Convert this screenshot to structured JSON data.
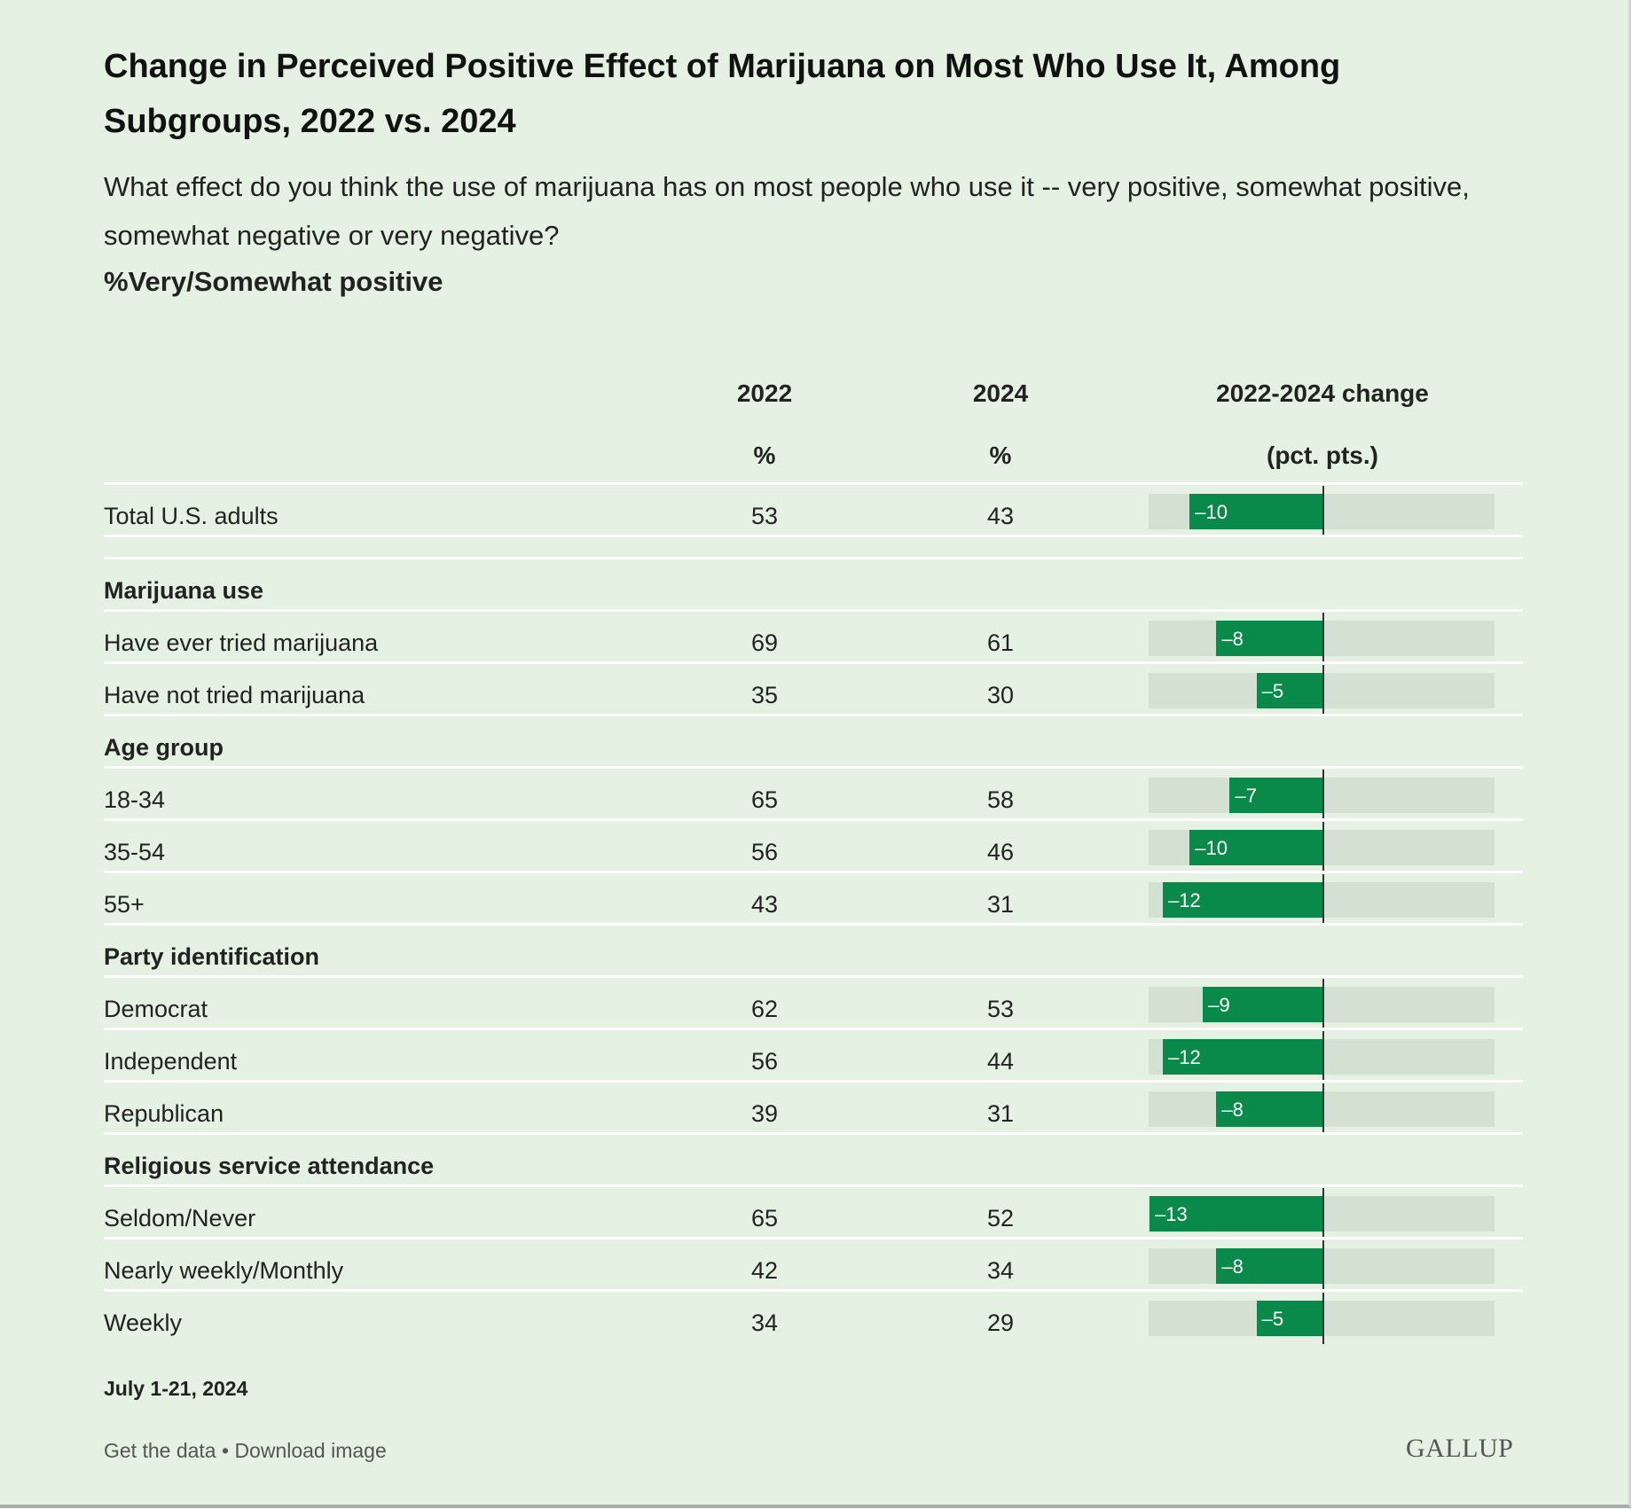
{
  "title": "Change in Perceived Positive Effect of Marijuana on Most Who Use It, Among Subgroups, 2022 vs. 2024",
  "subtitle": "What effect do you think the use of marijuana has on most people who use it -- very positive, somewhat positive, somewhat negative or very negative?",
  "measure": "%Very/Somewhat positive",
  "columns": {
    "y2022": "2022",
    "y2022_unit": "%",
    "y2024": "2024",
    "y2024_unit": "%",
    "change": "2022-2024 change",
    "change_unit": "(pct. pts.)"
  },
  "footnote": "July 1-21, 2024",
  "links": {
    "get_data": "Get the data",
    "separator": "•",
    "download": "Download image"
  },
  "logo": "GALLUP",
  "colors": {
    "background": "#e5f2e3",
    "bar": "#0a8a4a",
    "track": "#d4e0d2"
  },
  "chart_data": {
    "type": "table",
    "change_axis": {
      "min": -13,
      "max": 13
    },
    "rows": [
      {
        "kind": "item",
        "label": "Total U.S. adults",
        "v2022": "53",
        "v2024": "43",
        "change": -10,
        "change_label": "–10"
      },
      {
        "kind": "group",
        "label": "Marijuana use"
      },
      {
        "kind": "item",
        "label": "Have ever tried marijuana",
        "v2022": "69",
        "v2024": "61",
        "change": -8,
        "change_label": "–8"
      },
      {
        "kind": "item",
        "label": "Have not tried marijuana",
        "v2022": "35",
        "v2024": "30",
        "change": -5,
        "change_label": "–5"
      },
      {
        "kind": "group",
        "label": "Age group"
      },
      {
        "kind": "item",
        "label": "18-34",
        "v2022": "65",
        "v2024": "58",
        "change": -7,
        "change_label": "–7"
      },
      {
        "kind": "item",
        "label": "35-54",
        "v2022": "56",
        "v2024": "46",
        "change": -10,
        "change_label": "–10"
      },
      {
        "kind": "item",
        "label": "55+",
        "v2022": "43",
        "v2024": "31",
        "change": -12,
        "change_label": "–12"
      },
      {
        "kind": "group",
        "label": "Party identification"
      },
      {
        "kind": "item",
        "label": "Democrat",
        "v2022": "62",
        "v2024": "53",
        "change": -9,
        "change_label": "–9"
      },
      {
        "kind": "item",
        "label": "Independent",
        "v2022": "56",
        "v2024": "44",
        "change": -12,
        "change_label": "–12"
      },
      {
        "kind": "item",
        "label": "Republican",
        "v2022": "39",
        "v2024": "31",
        "change": -8,
        "change_label": "–8"
      },
      {
        "kind": "group",
        "label": "Religious service attendance"
      },
      {
        "kind": "item",
        "label": "Seldom/Never",
        "v2022": "65",
        "v2024": "52",
        "change": -13,
        "change_label": "–13"
      },
      {
        "kind": "item",
        "label": "Nearly weekly/Monthly",
        "v2022": "42",
        "v2024": "34",
        "change": -8,
        "change_label": "–8"
      },
      {
        "kind": "item",
        "label": "Weekly",
        "v2022": "34",
        "v2024": "29",
        "change": -5,
        "change_label": "–5"
      }
    ]
  }
}
